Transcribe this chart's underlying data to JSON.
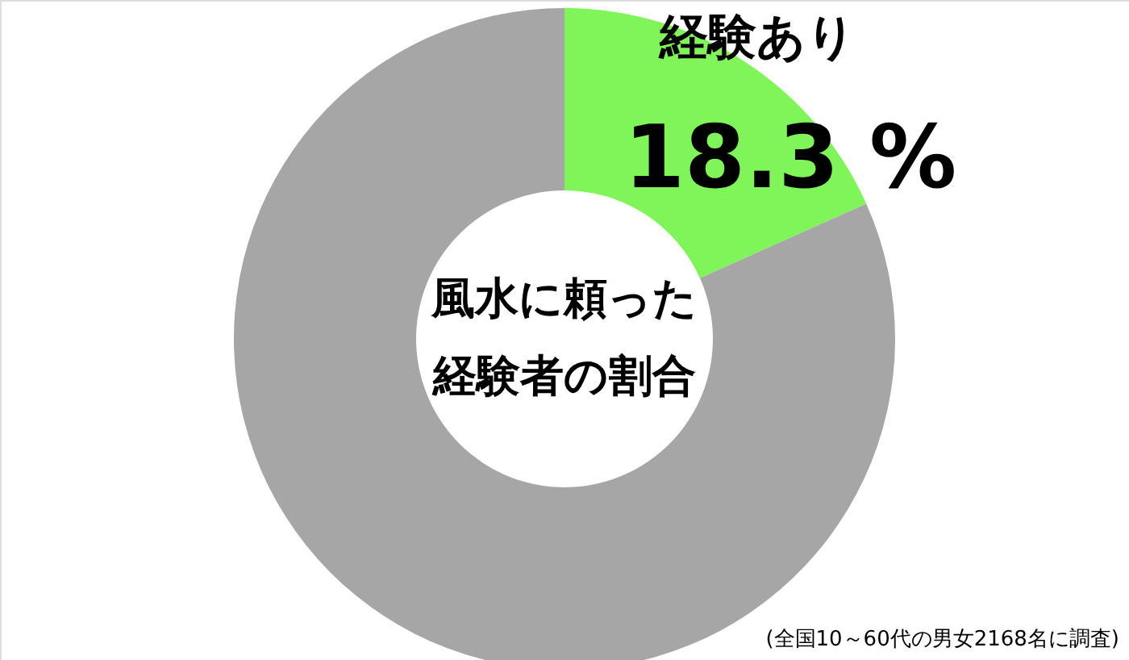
{
  "chart_data": {
    "type": "donut",
    "title": "風水に頼った経験者の割合",
    "categories": [
      "経験あり",
      null
    ],
    "values": [
      18.3,
      81.7
    ],
    "colors": [
      "#80f55a",
      "#a6a6a6"
    ],
    "value_labels": [
      "18.3 %",
      null
    ],
    "annotations": [
      "(全国10～60代の男女2168名に調査)"
    ]
  }
}
